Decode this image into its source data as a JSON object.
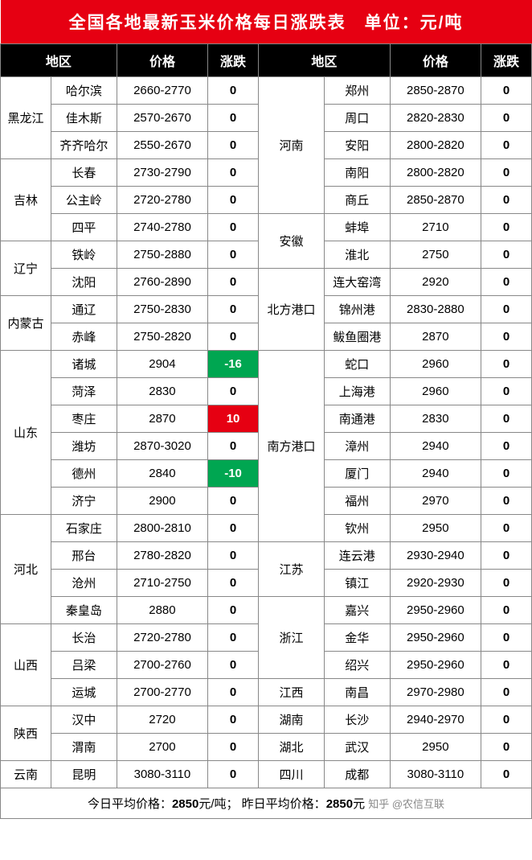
{
  "title": "全国各地最新玉米价格每日涨跌表　单位：元/吨",
  "headers": [
    "地区",
    "价格",
    "涨跌",
    "地区",
    "价格",
    "涨跌"
  ],
  "footer_prefix": "今日平均价格：",
  "footer_today": "2850",
  "footer_unit": "元/吨；",
  "footer_yest_prefix": "昨日平均价格：",
  "footer_yest": "2850",
  "footer_yest_unit": "元",
  "watermark": "知乎 @农信互联",
  "left": [
    {
      "prov": "黑龙江",
      "rows": [
        {
          "city": "哈尔滨",
          "price": "2660-2770",
          "chg": 0
        },
        {
          "city": "佳木斯",
          "price": "2570-2670",
          "chg": 0
        },
        {
          "city": "齐齐哈尔",
          "price": "2550-2670",
          "chg": 0
        }
      ]
    },
    {
      "prov": "吉林",
      "rows": [
        {
          "city": "长春",
          "price": "2730-2790",
          "chg": 0
        },
        {
          "city": "公主岭",
          "price": "2720-2780",
          "chg": 0
        },
        {
          "city": "四平",
          "price": "2740-2780",
          "chg": 0
        }
      ]
    },
    {
      "prov": "辽宁",
      "rows": [
        {
          "city": "铁岭",
          "price": "2750-2880",
          "chg": 0
        },
        {
          "city": "沈阳",
          "price": "2760-2890",
          "chg": 0
        }
      ]
    },
    {
      "prov": "内蒙古",
      "rows": [
        {
          "city": "通辽",
          "price": "2750-2830",
          "chg": 0
        },
        {
          "city": "赤峰",
          "price": "2750-2820",
          "chg": 0
        }
      ]
    },
    {
      "prov": "山东",
      "rows": [
        {
          "city": "诸城",
          "price": "2904",
          "chg": -16
        },
        {
          "city": "菏泽",
          "price": "2830",
          "chg": 0
        },
        {
          "city": "枣庄",
          "price": "2870",
          "chg": 10
        },
        {
          "city": "潍坊",
          "price": "2870-3020",
          "chg": 0
        },
        {
          "city": "德州",
          "price": "2840",
          "chg": -10
        },
        {
          "city": "济宁",
          "price": "2900",
          "chg": 0
        }
      ]
    },
    {
      "prov": "河北",
      "rows": [
        {
          "city": "石家庄",
          "price": "2800-2810",
          "chg": 0
        },
        {
          "city": "邢台",
          "price": "2780-2820",
          "chg": 0
        },
        {
          "city": "沧州",
          "price": "2710-2750",
          "chg": 0
        },
        {
          "city": "秦皇岛",
          "price": "2880",
          "chg": 0
        }
      ]
    },
    {
      "prov": "山西",
      "rows": [
        {
          "city": "长治",
          "price": "2720-2780",
          "chg": 0
        },
        {
          "city": "吕梁",
          "price": "2700-2760",
          "chg": 0
        },
        {
          "city": "运城",
          "price": "2700-2770",
          "chg": 0
        }
      ]
    },
    {
      "prov": "陕西",
      "rows": [
        {
          "city": "汉中",
          "price": "2720",
          "chg": 0
        },
        {
          "city": "渭南",
          "price": "2700",
          "chg": 0
        }
      ]
    },
    {
      "prov": "云南",
      "rows": [
        {
          "city": "昆明",
          "price": "3080-3110",
          "chg": 0
        }
      ]
    }
  ],
  "right": [
    {
      "prov": "河南",
      "rows": [
        {
          "city": "郑州",
          "price": "2850-2870",
          "chg": 0
        },
        {
          "city": "周口",
          "price": "2820-2830",
          "chg": 0
        },
        {
          "city": "安阳",
          "price": "2800-2820",
          "chg": 0
        },
        {
          "city": "南阳",
          "price": "2800-2820",
          "chg": 0
        },
        {
          "city": "商丘",
          "price": "2850-2870",
          "chg": 0
        }
      ]
    },
    {
      "prov": "安徽",
      "rows": [
        {
          "city": "蚌埠",
          "price": "2710",
          "chg": 0
        },
        {
          "city": "淮北",
          "price": "2750",
          "chg": 0
        }
      ]
    },
    {
      "prov": "北方港口",
      "rows": [
        {
          "city": "连大窑湾",
          "price": "2920",
          "chg": 0
        },
        {
          "city": "锦州港",
          "price": "2830-2880",
          "chg": 0
        },
        {
          "city": "鲅鱼圈港",
          "price": "2870",
          "chg": 0
        }
      ]
    },
    {
      "prov": "南方港口",
      "rows": [
        {
          "city": "蛇口",
          "price": "2960",
          "chg": 0
        },
        {
          "city": "上海港",
          "price": "2960",
          "chg": 0
        },
        {
          "city": "南通港",
          "price": "2830",
          "chg": 0
        },
        {
          "city": "漳州",
          "price": "2940",
          "chg": 0
        },
        {
          "city": "厦门",
          "price": "2940",
          "chg": 0
        },
        {
          "city": "福州",
          "price": "2970",
          "chg": 0
        },
        {
          "city": "钦州",
          "price": "2950",
          "chg": 0
        }
      ]
    },
    {
      "prov": "江苏",
      "rows": [
        {
          "city": "连云港",
          "price": "2930-2940",
          "chg": 0
        },
        {
          "city": "镇江",
          "price": "2920-2930",
          "chg": 0
        }
      ]
    },
    {
      "prov": "浙江",
      "rows": [
        {
          "city": "嘉兴",
          "price": "2950-2960",
          "chg": 0
        },
        {
          "city": "金华",
          "price": "2950-2960",
          "chg": 0
        },
        {
          "city": "绍兴",
          "price": "2950-2960",
          "chg": 0
        }
      ]
    },
    {
      "prov": "江西",
      "rows": [
        {
          "city": "南昌",
          "price": "2970-2980",
          "chg": 0
        }
      ]
    },
    {
      "prov": "湖南",
      "rows": [
        {
          "city": "长沙",
          "price": "2940-2970",
          "chg": 0
        }
      ]
    },
    {
      "prov": "湖北",
      "rows": [
        {
          "city": "武汉",
          "price": "2950",
          "chg": 0
        }
      ]
    },
    {
      "prov": "四川",
      "rows": [
        {
          "city": "成都",
          "price": "3080-3110",
          "chg": 0
        }
      ]
    }
  ]
}
